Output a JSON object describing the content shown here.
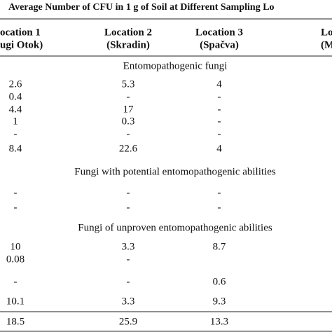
{
  "title": "Average Number of CFU in 1 g of Soil at Different Sampling Lo",
  "columns": [
    [
      "ocation 1",
      "ugi Otok)"
    ],
    [
      "Location 2",
      "(Skradin)"
    ],
    [
      "Location 3",
      "(Spačva)"
    ],
    [
      "Lo",
      "(M"
    ]
  ],
  "sections": [
    {
      "heading": "Entomopathogenic fungi",
      "rows": [
        [
          "2.6",
          "5.3",
          "4"
        ],
        [
          "0.4",
          "-",
          "-"
        ],
        [
          "4.4",
          "17",
          "-"
        ],
        [
          "1",
          "0.3",
          "-"
        ],
        [
          "-",
          "-",
          "-"
        ],
        [
          "8.4",
          "22.6",
          "4"
        ]
      ]
    },
    {
      "heading": "Fungi with potential entomopathogenic abilities",
      "rows": [
        [
          "-",
          "-",
          "-"
        ],
        [
          "-",
          "-",
          "-"
        ]
      ]
    },
    {
      "heading": "Fungi of unproven entomopathogenic abilities",
      "rows": [
        [
          "10",
          "3.3",
          "8.7"
        ],
        [
          "0.08",
          "-",
          null
        ],
        [
          "-",
          "-",
          "0.6"
        ],
        [
          "10.1",
          "3.3",
          "9.3"
        ]
      ]
    }
  ],
  "total": [
    "18.5",
    "25.9",
    "13.3"
  ]
}
